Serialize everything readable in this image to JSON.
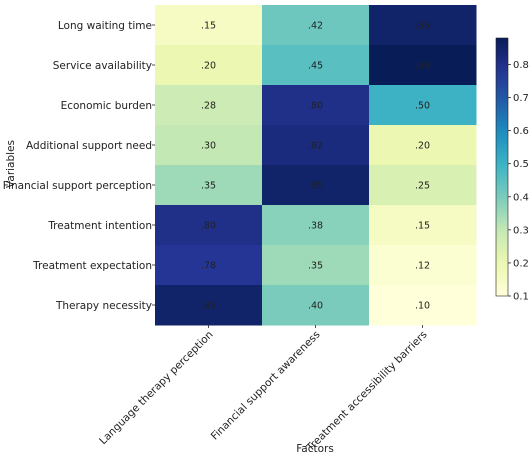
{
  "chart_data": {
    "type": "heatmap",
    "title": "",
    "xlabel": "Factors",
    "ylabel": "Variables",
    "rows": [
      "Long waiting time",
      "Service availability",
      "Economic burden",
      "Additional support need",
      "Financial support perception",
      "Treatment intention",
      "Treatment expectation",
      "Therapy necessity"
    ],
    "columns": [
      "Language therapy perception",
      "Financial support awareness",
      "Treatment accessibility barriers"
    ],
    "values": [
      [
        0.15,
        0.42,
        0.85
      ],
      [
        0.2,
        0.45,
        0.88
      ],
      [
        0.28,
        0.8,
        0.5
      ],
      [
        0.3,
        0.82,
        0.2
      ],
      [
        0.35,
        0.85,
        0.25
      ],
      [
        0.8,
        0.38,
        0.15
      ],
      [
        0.78,
        0.35,
        0.12
      ],
      [
        0.85,
        0.4,
        0.1
      ]
    ],
    "value_labels": [
      [
        ".15",
        ".42",
        ".85"
      ],
      [
        ".20",
        ".45",
        ".88"
      ],
      [
        ".28",
        ".80",
        ".50"
      ],
      [
        ".30",
        ".82",
        ".20"
      ],
      [
        ".35",
        ".85",
        ".25"
      ],
      [
        ".80",
        ".38",
        ".15"
      ],
      [
        ".78",
        ".35",
        ".12"
      ],
      [
        ".85",
        ".40",
        ".10"
      ]
    ],
    "colormap": "YlGnBu",
    "vmin": 0.1,
    "vmax": 0.88,
    "colorbar": {
      "ticks": [
        0.1,
        0.2,
        0.3,
        0.4,
        0.5,
        0.6,
        0.7,
        0.8
      ],
      "tick_labels": [
        "0.1",
        "0.2",
        "0.3",
        "0.4",
        "0.5",
        "0.6",
        "0.7",
        "0.8"
      ],
      "placement": "right"
    }
  }
}
